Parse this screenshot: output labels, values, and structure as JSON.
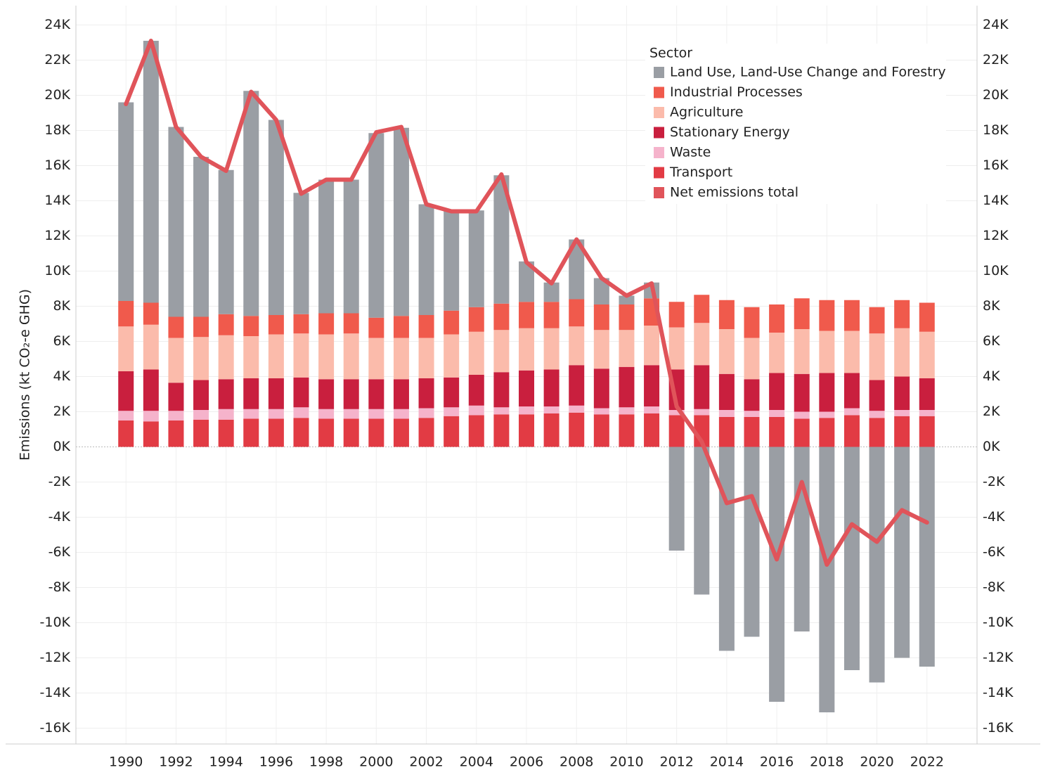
{
  "chart_data": {
    "type": "bar",
    "stacked": true,
    "y_label": "Emissions (kt CO₂-e GHG)",
    "legend_title": "Sector",
    "legend": "top-right",
    "grid": true,
    "x": [
      1990,
      1991,
      1992,
      1993,
      1994,
      1995,
      1996,
      1997,
      1998,
      1999,
      2000,
      2001,
      2002,
      2003,
      2004,
      2005,
      2006,
      2007,
      2008,
      2009,
      2010,
      2011,
      2012,
      2013,
      2014,
      2015,
      2016,
      2017,
      2018,
      2019,
      2020,
      2021,
      2022
    ],
    "xlim": [
      1988,
      2024
    ],
    "xticks": [
      1990,
      1992,
      1994,
      1996,
      1998,
      2000,
      2002,
      2004,
      2006,
      2008,
      2010,
      2012,
      2014,
      2016,
      2018,
      2020,
      2022
    ],
    "ylim": [
      -16900,
      25100
    ],
    "yticks": [
      {
        "value": -16000,
        "label": "-16K"
      },
      {
        "value": -14000,
        "label": "-14K"
      },
      {
        "value": -12000,
        "label": "-12K"
      },
      {
        "value": -10000,
        "label": "-10K"
      },
      {
        "value": -8000,
        "label": "-8K"
      },
      {
        "value": -6000,
        "label": "-6K"
      },
      {
        "value": -4000,
        "label": "-4K"
      },
      {
        "value": -2000,
        "label": "-2K"
      },
      {
        "value": 0,
        "label": "0K"
      },
      {
        "value": 2000,
        "label": "2K"
      },
      {
        "value": 4000,
        "label": "4K"
      },
      {
        "value": 6000,
        "label": "6K"
      },
      {
        "value": 8000,
        "label": "8K"
      },
      {
        "value": 10000,
        "label": "10K"
      },
      {
        "value": 12000,
        "label": "12K"
      },
      {
        "value": 14000,
        "label": "14K"
      },
      {
        "value": 16000,
        "label": "16K"
      },
      {
        "value": 18000,
        "label": "18K"
      },
      {
        "value": 20000,
        "label": "20K"
      },
      {
        "value": 22000,
        "label": "22K"
      },
      {
        "value": 24000,
        "label": "24K"
      }
    ],
    "y2lim": [
      -16900,
      25100
    ],
    "y2ticks": [
      {
        "value": -16000,
        "label": "-16K"
      },
      {
        "value": -14000,
        "label": "-14K"
      },
      {
        "value": -12000,
        "label": "-12K"
      },
      {
        "value": -10000,
        "label": "-10K"
      },
      {
        "value": -8000,
        "label": "-8K"
      },
      {
        "value": -6000,
        "label": "-6K"
      },
      {
        "value": -4000,
        "label": "-4K"
      },
      {
        "value": -2000,
        "label": "-2K"
      },
      {
        "value": 0,
        "label": "0K"
      },
      {
        "value": 2000,
        "label": "2K"
      },
      {
        "value": 4000,
        "label": "4K"
      },
      {
        "value": 6000,
        "label": "6K"
      },
      {
        "value": 8000,
        "label": "8K"
      },
      {
        "value": 10000,
        "label": "10K"
      },
      {
        "value": 12000,
        "label": "12K"
      },
      {
        "value": 14000,
        "label": "14K"
      },
      {
        "value": 16000,
        "label": "16K"
      },
      {
        "value": 18000,
        "label": "18K"
      },
      {
        "value": 20000,
        "label": "20K"
      },
      {
        "value": 22000,
        "label": "22K"
      },
      {
        "value": 24000,
        "label": "24K"
      }
    ],
    "series": [
      {
        "name": "Land Use, Land-Use Change and Forestry",
        "color": "#9a9ea4",
        "values": [
          11300,
          14900,
          10800,
          9100,
          8200,
          12800,
          11100,
          6900,
          7600,
          7600,
          10500,
          10700,
          6300,
          5700,
          5500,
          7300,
          2300,
          1100,
          3400,
          1500,
          500,
          900,
          -5900,
          -8400,
          -11600,
          -10800,
          -14500,
          -10500,
          -15100,
          -12700,
          -13400,
          -12000,
          -12500
        ]
      },
      {
        "name": "Industrial Processes",
        "color": "#f05a4c",
        "values": [
          1450,
          1250,
          1200,
          1150,
          1200,
          1150,
          1100,
          1100,
          1200,
          1150,
          1150,
          1250,
          1300,
          1350,
          1400,
          1500,
          1500,
          1500,
          1550,
          1450,
          1450,
          1550,
          1450,
          1600,
          1650,
          1750,
          1600,
          1750,
          1750,
          1750,
          1500,
          1600,
          1650
        ]
      },
      {
        "name": "Agriculture",
        "color": "#fbbbab",
        "values": [
          2550,
          2550,
          2550,
          2450,
          2500,
          2400,
          2500,
          2500,
          2550,
          2600,
          2350,
          2350,
          2300,
          2450,
          2450,
          2400,
          2400,
          2350,
          2200,
          2200,
          2100,
          2250,
          2400,
          2400,
          2550,
          2350,
          2300,
          2550,
          2400,
          2400,
          2650,
          2750,
          2650
        ]
      },
      {
        "name": "Stationary Energy",
        "color": "#c91f3e",
        "values": [
          2250,
          2350,
          1600,
          1700,
          1700,
          1750,
          1750,
          1700,
          1700,
          1700,
          1700,
          1700,
          1700,
          1700,
          1750,
          2000,
          2050,
          2100,
          2300,
          2250,
          2300,
          2350,
          2300,
          2500,
          2050,
          1800,
          2100,
          2150,
          2200,
          2000,
          1750,
          1900,
          1800
        ]
      },
      {
        "name": "Waste",
        "color": "#f5b3cb",
        "values": [
          550,
          600,
          550,
          550,
          600,
          550,
          550,
          600,
          550,
          550,
          550,
          550,
          550,
          500,
          550,
          400,
          450,
          400,
          400,
          350,
          400,
          400,
          300,
          350,
          400,
          350,
          400,
          400,
          350,
          400,
          400,
          350,
          350
        ]
      },
      {
        "name": "Transport",
        "color": "#e23b44",
        "values": [
          1500,
          1450,
          1500,
          1550,
          1550,
          1600,
          1600,
          1650,
          1600,
          1600,
          1600,
          1600,
          1650,
          1750,
          1800,
          1850,
          1850,
          1900,
          1950,
          1850,
          1850,
          1900,
          1800,
          1800,
          1700,
          1700,
          1700,
          1600,
          1650,
          1800,
          1650,
          1750,
          1750
        ]
      },
      {
        "name": "Net emissions total",
        "color": "#e0545a",
        "type": "line",
        "axis": "y2",
        "values": [
          19500,
          23100,
          18200,
          16500,
          15700,
          20200,
          18600,
          14400,
          15200,
          15200,
          17900,
          18200,
          13800,
          13400,
          13400,
          15500,
          10500,
          9300,
          11800,
          9600,
          8600,
          9300,
          2300,
          300,
          -3200,
          -2800,
          -6400,
          -2000,
          -6700,
          -4400,
          -5400,
          -3600,
          -4300
        ]
      }
    ]
  }
}
